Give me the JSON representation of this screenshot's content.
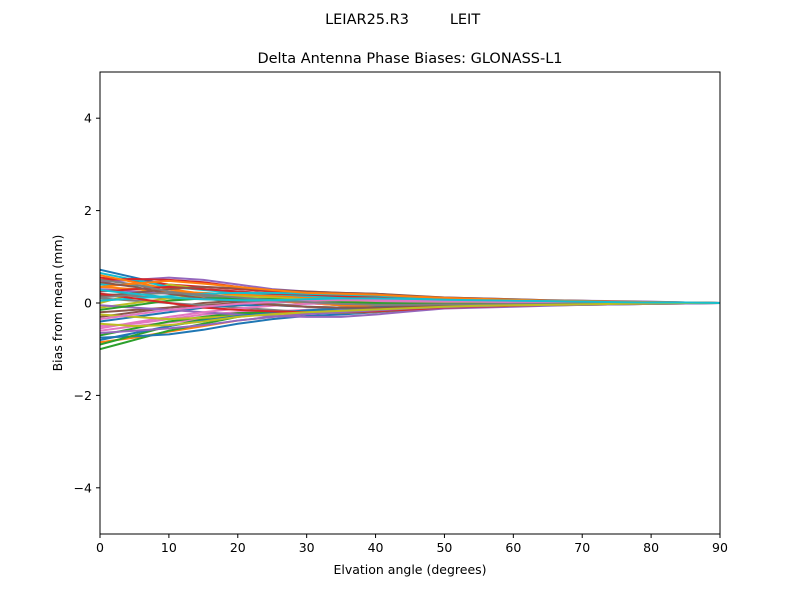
{
  "chart_data": {
    "type": "line",
    "suptitle_left": "LEIAR25.R3",
    "suptitle_right": "LEIT",
    "title": "Delta Antenna Phase Biases: GLONASS-L1",
    "xlabel": "Elvation angle (degrees)",
    "ylabel": "Bias from mean (mm)",
    "xlim": [
      0,
      90
    ],
    "ylim": [
      -5,
      5
    ],
    "xticks": [
      "0",
      "10",
      "20",
      "30",
      "40",
      "50",
      "60",
      "70",
      "80",
      "90"
    ],
    "xtick_values": [
      0,
      10,
      20,
      30,
      40,
      50,
      60,
      70,
      80,
      90
    ],
    "yticks": [
      "−4",
      "−2",
      "0",
      "2",
      "4"
    ],
    "ytick_values": [
      -4,
      -2,
      0,
      2,
      4
    ],
    "grid": false,
    "legend": "none",
    "x": [
      0,
      5,
      10,
      15,
      20,
      25,
      30,
      35,
      40,
      45,
      50,
      55,
      60,
      65,
      70,
      75,
      80,
      85,
      90
    ],
    "colors": [
      "#1f77b4",
      "#ff7f0e",
      "#2ca02c",
      "#d62728",
      "#9467bd",
      "#8c564b",
      "#e377c2",
      "#7f7f7f",
      "#bcbd22",
      "#17becf"
    ],
    "series": [
      {
        "values": [
          0.72,
          0.55,
          0.38,
          0.3,
          0.22,
          0.18,
          0.12,
          0.1,
          0.08,
          0.07,
          0.05,
          0.04,
          0.03,
          0.03,
          0.02,
          0.02,
          0.01,
          0.01,
          0.0
        ]
      },
      {
        "values": [
          -0.85,
          -0.75,
          -0.62,
          -0.5,
          -0.38,
          -0.3,
          -0.22,
          -0.18,
          -0.14,
          -0.1,
          -0.07,
          -0.05,
          -0.04,
          -0.03,
          -0.02,
          -0.02,
          -0.01,
          -0.01,
          0.0
        ]
      },
      {
        "values": [
          -1.0,
          -0.8,
          -0.6,
          -0.45,
          -0.3,
          -0.22,
          -0.15,
          -0.12,
          -0.1,
          -0.08,
          -0.06,
          -0.05,
          -0.04,
          -0.03,
          -0.02,
          -0.01,
          -0.01,
          0.0,
          0.0
        ]
      },
      {
        "values": [
          0.55,
          0.48,
          0.4,
          0.35,
          0.3,
          0.25,
          0.2,
          0.18,
          0.15,
          0.12,
          0.1,
          0.08,
          0.06,
          0.05,
          0.04,
          0.03,
          0.02,
          0.01,
          0.0
        ]
      },
      {
        "values": [
          0.45,
          0.5,
          0.55,
          0.5,
          0.4,
          0.3,
          0.25,
          0.22,
          0.2,
          0.15,
          0.12,
          0.1,
          0.08,
          0.06,
          0.05,
          0.04,
          0.03,
          0.01,
          0.0
        ]
      },
      {
        "values": [
          -0.3,
          -0.2,
          -0.1,
          0.0,
          0.05,
          0.05,
          0.0,
          -0.05,
          -0.05,
          -0.05,
          -0.04,
          -0.03,
          -0.02,
          -0.02,
          -0.01,
          -0.01,
          0.0,
          0.0,
          0.0
        ]
      },
      {
        "values": [
          -0.6,
          -0.5,
          -0.42,
          -0.35,
          -0.28,
          -0.24,
          -0.2,
          -0.18,
          -0.15,
          -0.12,
          -0.1,
          -0.08,
          -0.06,
          -0.05,
          -0.04,
          -0.03,
          -0.02,
          -0.01,
          0.0
        ]
      },
      {
        "values": [
          0.2,
          0.15,
          0.1,
          0.08,
          0.05,
          0.04,
          0.02,
          0.0,
          -0.02,
          -0.03,
          -0.03,
          -0.03,
          -0.02,
          -0.02,
          -0.01,
          -0.01,
          -0.01,
          0.0,
          0.0
        ]
      },
      {
        "values": [
          0.0,
          0.2,
          0.4,
          0.3,
          0.2,
          0.1,
          0.0,
          -0.05,
          -0.05,
          -0.04,
          -0.03,
          -0.02,
          -0.02,
          -0.01,
          -0.01,
          0.0,
          0.0,
          0.0,
          0.0
        ]
      },
      {
        "values": [
          0.65,
          0.5,
          0.35,
          0.28,
          0.22,
          0.18,
          0.15,
          0.12,
          0.1,
          0.08,
          0.06,
          0.05,
          0.04,
          0.03,
          0.02,
          0.02,
          0.01,
          0.01,
          0.0
        ]
      },
      {
        "values": [
          -0.75,
          -0.72,
          -0.68,
          -0.58,
          -0.45,
          -0.35,
          -0.28,
          -0.25,
          -0.2,
          -0.15,
          -0.1,
          -0.08,
          -0.06,
          -0.05,
          -0.04,
          -0.03,
          -0.02,
          -0.01,
          0.0
        ]
      },
      {
        "values": [
          0.35,
          0.3,
          0.25,
          0.22,
          0.18,
          0.15,
          0.12,
          0.1,
          0.08,
          0.06,
          0.05,
          0.04,
          0.03,
          0.02,
          0.02,
          0.01,
          0.01,
          0.0,
          0.0
        ]
      },
      {
        "values": [
          -0.9,
          -0.7,
          -0.5,
          -0.35,
          -0.25,
          -0.2,
          -0.18,
          -0.15,
          -0.12,
          -0.1,
          -0.08,
          -0.06,
          -0.05,
          -0.04,
          -0.03,
          -0.02,
          -0.01,
          0.0,
          0.0
        ]
      },
      {
        "values": [
          0.5,
          0.52,
          0.5,
          0.45,
          0.35,
          0.25,
          0.18,
          0.15,
          0.12,
          0.1,
          0.08,
          0.06,
          0.05,
          0.04,
          0.03,
          0.02,
          0.01,
          0.01,
          0.0
        ]
      },
      {
        "values": [
          0.3,
          0.25,
          0.2,
          0.15,
          0.1,
          0.08,
          0.05,
          0.03,
          0.02,
          0.01,
          0.01,
          0.0,
          0.0,
          0.0,
          0.0,
          0.0,
          0.0,
          0.0,
          0.0
        ]
      },
      {
        "values": [
          -0.2,
          -0.15,
          -0.1,
          -0.05,
          0.0,
          0.02,
          0.02,
          0.01,
          0.0,
          -0.01,
          -0.01,
          -0.01,
          -0.01,
          0.0,
          0.0,
          0.0,
          0.0,
          0.0,
          0.0
        ]
      },
      {
        "values": [
          -0.5,
          -0.45,
          -0.35,
          -0.25,
          -0.2,
          -0.18,
          -0.15,
          -0.13,
          -0.1,
          -0.08,
          -0.06,
          -0.05,
          -0.04,
          -0.03,
          -0.02,
          -0.02,
          -0.01,
          0.0,
          0.0
        ]
      },
      {
        "values": [
          0.1,
          0.05,
          0.0,
          -0.05,
          -0.1,
          -0.15,
          -0.2,
          -0.22,
          -0.2,
          -0.15,
          -0.1,
          -0.08,
          -0.06,
          -0.05,
          -0.03,
          -0.02,
          -0.01,
          0.0,
          0.0
        ]
      },
      {
        "values": [
          -0.1,
          0.0,
          0.1,
          0.15,
          0.15,
          0.12,
          0.08,
          0.05,
          0.03,
          0.02,
          0.02,
          0.01,
          0.01,
          0.01,
          0.0,
          0.0,
          0.0,
          0.0,
          0.0
        ]
      },
      {
        "values": [
          0.4,
          0.38,
          0.35,
          0.3,
          0.25,
          0.2,
          0.15,
          0.12,
          0.1,
          0.08,
          0.06,
          0.05,
          0.04,
          0.03,
          0.02,
          0.02,
          0.01,
          0.0,
          0.0
        ]
      },
      {
        "values": [
          -0.4,
          -0.3,
          -0.2,
          -0.1,
          -0.05,
          -0.05,
          -0.08,
          -0.1,
          -0.1,
          -0.08,
          -0.06,
          -0.05,
          -0.04,
          -0.03,
          -0.02,
          -0.01,
          -0.01,
          0.0,
          0.0
        ]
      },
      {
        "values": [
          0.6,
          0.45,
          0.3,
          0.2,
          0.1,
          0.05,
          0.0,
          -0.05,
          -0.08,
          -0.08,
          -0.06,
          -0.05,
          -0.04,
          -0.03,
          -0.02,
          -0.02,
          -0.01,
          0.0,
          0.0
        ]
      },
      {
        "values": [
          -0.7,
          -0.55,
          -0.4,
          -0.3,
          -0.22,
          -0.2,
          -0.2,
          -0.2,
          -0.18,
          -0.14,
          -0.1,
          -0.08,
          -0.06,
          -0.04,
          -0.03,
          -0.02,
          -0.01,
          0.0,
          0.0
        ]
      },
      {
        "values": [
          0.25,
          0.3,
          0.35,
          0.3,
          0.25,
          0.2,
          0.18,
          0.15,
          0.12,
          0.1,
          0.08,
          0.06,
          0.05,
          0.04,
          0.03,
          0.02,
          0.01,
          0.0,
          0.0
        ]
      },
      {
        "values": [
          -0.05,
          -0.1,
          -0.15,
          -0.2,
          -0.25,
          -0.28,
          -0.3,
          -0.3,
          -0.25,
          -0.18,
          -0.12,
          -0.1,
          -0.08,
          -0.06,
          -0.04,
          -0.03,
          -0.02,
          -0.01,
          0.0
        ]
      },
      {
        "values": [
          0.15,
          0.22,
          0.3,
          0.35,
          0.32,
          0.28,
          0.25,
          0.22,
          0.2,
          0.16,
          0.12,
          0.1,
          0.08,
          0.06,
          0.05,
          0.03,
          0.02,
          0.01,
          0.0
        ]
      },
      {
        "values": [
          -0.55,
          -0.42,
          -0.3,
          -0.2,
          -0.12,
          -0.06,
          -0.02,
          0.0,
          0.02,
          0.03,
          0.03,
          0.03,
          0.02,
          0.02,
          0.01,
          0.01,
          0.0,
          0.0,
          0.0
        ]
      },
      {
        "values": [
          0.5,
          0.4,
          0.25,
          0.15,
          0.05,
          -0.02,
          -0.08,
          -0.12,
          -0.12,
          -0.1,
          -0.08,
          -0.06,
          -0.05,
          -0.04,
          -0.03,
          -0.02,
          -0.01,
          0.0,
          0.0
        ]
      },
      {
        "values": [
          -0.25,
          -0.3,
          -0.35,
          -0.32,
          -0.28,
          -0.25,
          -0.2,
          -0.18,
          -0.15,
          -0.12,
          -0.09,
          -0.07,
          -0.05,
          -0.04,
          -0.03,
          -0.02,
          -0.01,
          0.0,
          0.0
        ]
      },
      {
        "values": [
          0.05,
          0.1,
          0.15,
          0.2,
          0.22,
          0.22,
          0.2,
          0.18,
          0.16,
          0.13,
          0.1,
          0.08,
          0.07,
          0.05,
          0.04,
          0.03,
          0.02,
          0.01,
          0.0
        ]
      },
      {
        "values": [
          -0.8,
          -0.65,
          -0.5,
          -0.38,
          -0.28,
          -0.22,
          -0.16,
          -0.12,
          -0.09,
          -0.07,
          -0.05,
          -0.04,
          -0.03,
          -0.02,
          -0.02,
          -0.01,
          -0.01,
          0.0,
          0.0
        ]
      },
      {
        "values": [
          0.35,
          0.42,
          0.48,
          0.42,
          0.35,
          0.28,
          0.22,
          0.2,
          0.18,
          0.14,
          0.11,
          0.09,
          0.07,
          0.05,
          0.04,
          0.03,
          0.02,
          0.01,
          0.0
        ]
      },
      {
        "values": [
          -0.15,
          -0.05,
          0.05,
          0.1,
          0.1,
          0.08,
          0.05,
          0.02,
          0.0,
          -0.01,
          -0.02,
          -0.02,
          -0.02,
          -0.01,
          -0.01,
          -0.01,
          0.0,
          0.0,
          0.0
        ]
      },
      {
        "values": [
          0.2,
          0.1,
          0.0,
          -0.1,
          -0.15,
          -0.18,
          -0.2,
          -0.2,
          -0.18,
          -0.14,
          -0.1,
          -0.08,
          -0.06,
          -0.04,
          -0.03,
          -0.02,
          -0.01,
          0.0,
          0.0
        ]
      },
      {
        "values": [
          -0.65,
          -0.6,
          -0.55,
          -0.48,
          -0.38,
          -0.3,
          -0.24,
          -0.2,
          -0.16,
          -0.12,
          -0.09,
          -0.07,
          -0.05,
          -0.04,
          -0.03,
          -0.02,
          -0.01,
          0.0,
          0.0
        ]
      },
      {
        "values": [
          0.45,
          0.35,
          0.2,
          0.1,
          0.02,
          -0.04,
          -0.08,
          -0.1,
          -0.1,
          -0.08,
          -0.06,
          -0.05,
          -0.04,
          -0.03,
          -0.02,
          -0.01,
          -0.01,
          0.0,
          0.0
        ]
      },
      {
        "values": [
          -0.35,
          -0.25,
          -0.15,
          -0.08,
          -0.02,
          0.02,
          0.05,
          0.06,
          0.06,
          0.05,
          0.04,
          0.03,
          0.02,
          0.02,
          0.01,
          0.01,
          0.0,
          0.0,
          0.0
        ]
      },
      {
        "values": [
          0.12,
          0.18,
          0.22,
          0.18,
          0.12,
          0.06,
          0.02,
          -0.02,
          -0.04,
          -0.04,
          -0.03,
          -0.03,
          -0.02,
          -0.02,
          -0.01,
          -0.01,
          0.0,
          0.0,
          0.0
        ]
      },
      {
        "values": [
          -0.45,
          -0.5,
          -0.48,
          -0.4,
          -0.3,
          -0.24,
          -0.2,
          -0.17,
          -0.14,
          -0.11,
          -0.08,
          -0.06,
          -0.05,
          -0.04,
          -0.03,
          -0.02,
          -0.01,
          0.0,
          0.0
        ]
      },
      {
        "values": [
          0.28,
          0.2,
          0.12,
          0.08,
          0.06,
          0.06,
          0.08,
          0.1,
          0.1,
          0.09,
          0.07,
          0.06,
          0.05,
          0.04,
          0.03,
          0.02,
          0.01,
          0.01,
          0.0
        ]
      }
    ]
  }
}
